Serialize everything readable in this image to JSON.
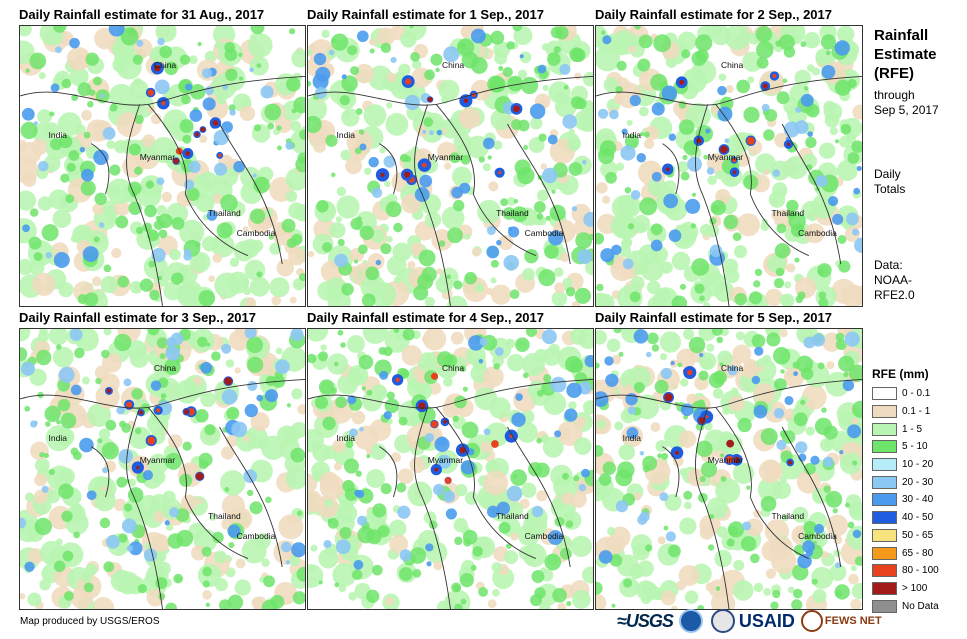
{
  "panels": [
    {
      "title": "Daily Rainfall estimate for 31 Aug., 2017"
    },
    {
      "title": "Daily Rainfall estimate for 1 Sep., 2017"
    },
    {
      "title": "Daily Rainfall estimate for 2 Sep., 2017"
    },
    {
      "title": "Daily Rainfall estimate for 3 Sep., 2017"
    },
    {
      "title": "Daily Rainfall estimate for 4 Sep., 2017"
    },
    {
      "title": "Daily Rainfall estimate for 5 Sep., 2017"
    }
  ],
  "place_labels": {
    "china": "China",
    "india": "India",
    "myanmar": "Myanmar",
    "thailand": "Thailand",
    "cambodia": "Cambodia"
  },
  "side": {
    "title_line1": "Rainfall",
    "title_line2": "Estimate",
    "title_line3": "(RFE)",
    "through": "through",
    "date": "Sep 5, 2017",
    "daily": "Daily",
    "totals": "Totals",
    "data": "Data:",
    "src1": "NOAA-",
    "src2": "RFE2.0"
  },
  "legend": {
    "title": "RFE (mm)",
    "items": [
      {
        "label": "0 - 0.1",
        "color": "#ffffff"
      },
      {
        "label": "0.1 - 1",
        "color": "#efdcc0"
      },
      {
        "label": "1 - 5",
        "color": "#b9f5b2"
      },
      {
        "label": "5 - 10",
        "color": "#6fe46a"
      },
      {
        "label": "10 - 20",
        "color": "#b4ecf8"
      },
      {
        "label": "20 - 30",
        "color": "#8cc8f4"
      },
      {
        "label": "30 - 40",
        "color": "#4a9bed"
      },
      {
        "label": "40 - 50",
        "color": "#1f5de0"
      },
      {
        "label": "50 - 65",
        "color": "#f8e47e"
      },
      {
        "label": "65 - 80",
        "color": "#f59a1b"
      },
      {
        "label": "80 - 100",
        "color": "#e8411e"
      },
      {
        "label": "> 100",
        "color": "#a41c1a"
      },
      {
        "label": "No Data",
        "color": "#8f8f8f"
      }
    ]
  },
  "credit": "Map produced by USGS/EROS",
  "logos": {
    "usgs": "≈USGS",
    "usaid": "USAID",
    "fews": "FEWS NET"
  }
}
